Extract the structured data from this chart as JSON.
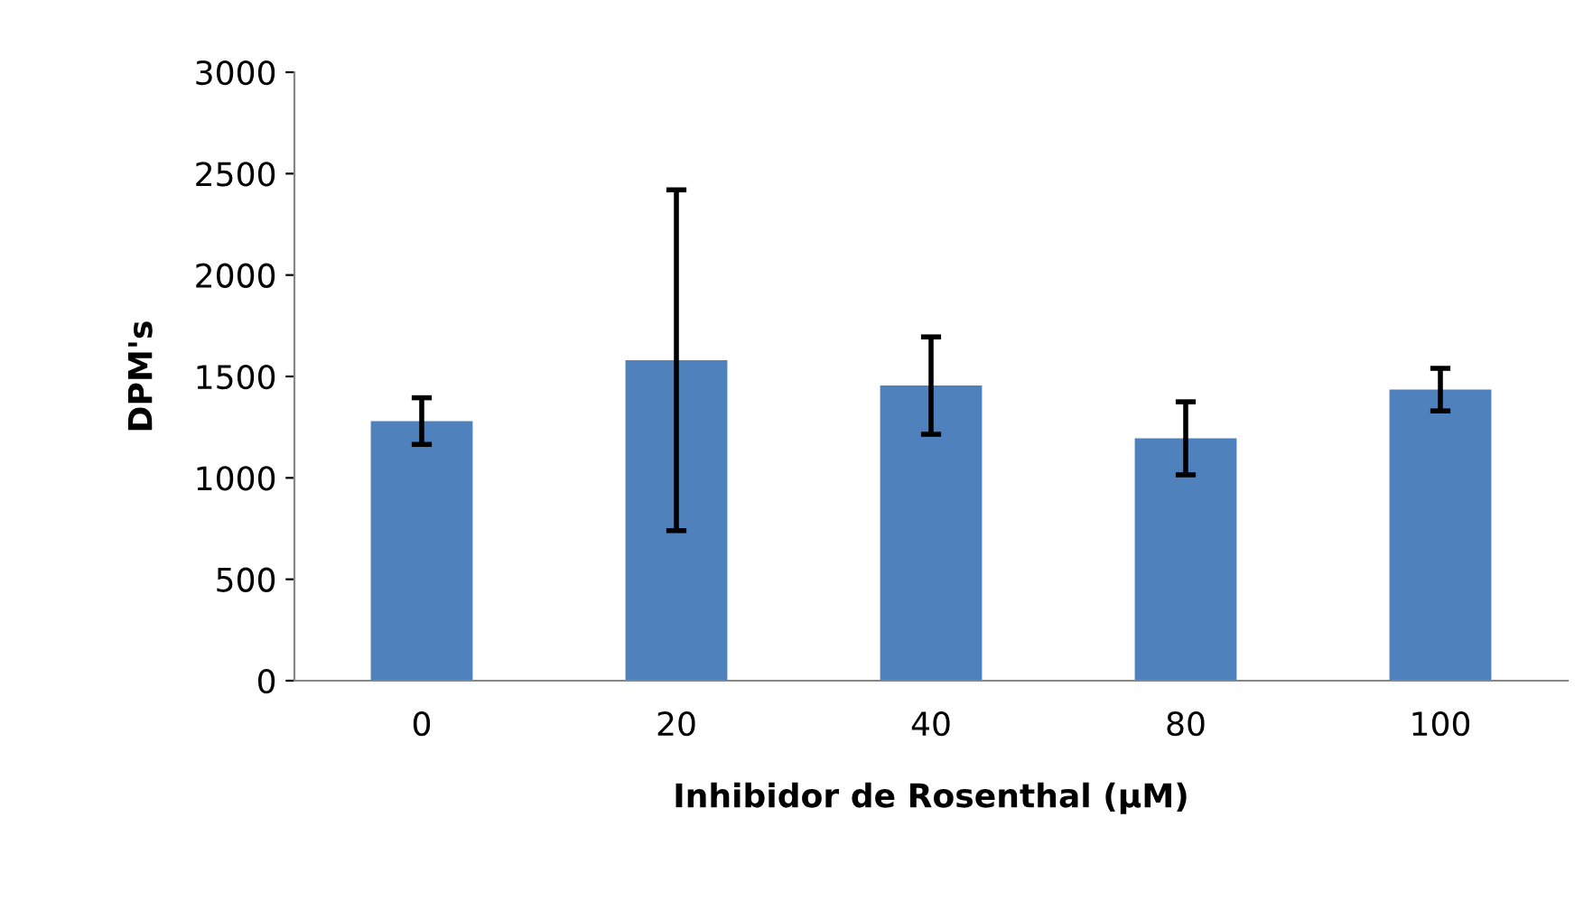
{
  "chart_data": {
    "type": "bar",
    "xlabel": "Inhibidor de Rosenthal (µM)",
    "ylabel": "DPM's",
    "categories": [
      "0",
      "20",
      "40",
      "80",
      "100"
    ],
    "values": [
      1280,
      1580,
      1455,
      1195,
      1435
    ],
    "errors": [
      115,
      840,
      240,
      180,
      105
    ],
    "color": "#4f81bd",
    "ylim": [
      0,
      3000
    ],
    "yticks": [
      0,
      500,
      1000,
      1500,
      2000,
      2500,
      3000
    ],
    "grid": false
  }
}
